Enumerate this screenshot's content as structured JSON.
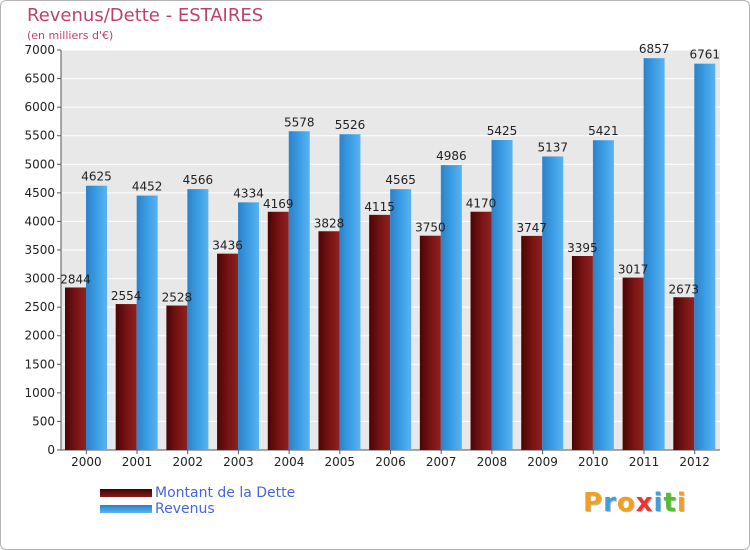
{
  "chart_data": {
    "type": "bar",
    "title": "Revenus/Dette - ESTAIRES",
    "subtitle": "(en milliers d'€)",
    "categories": [
      "2000",
      "2001",
      "2002",
      "2003",
      "2004",
      "2005",
      "2006",
      "2007",
      "2008",
      "2009",
      "2010",
      "2011",
      "2012"
    ],
    "series": [
      {
        "name": "Montant de la Dette",
        "color": "#7a1414",
        "values": [
          2844,
          2554,
          2528,
          3436,
          4169,
          3828,
          4115,
          3750,
          4170,
          3747,
          3395,
          3017,
          2673
        ]
      },
      {
        "name": "Revenus",
        "color": "#3d9fe6",
        "values": [
          4625,
          4452,
          4566,
          4334,
          5578,
          5526,
          4565,
          4986,
          5425,
          5137,
          5421,
          6857,
          6761
        ]
      }
    ],
    "ylim": [
      0,
      7000
    ],
    "ytick_step": 500,
    "grid": true,
    "legend_position": "bottom-left"
  },
  "brand": {
    "letters": [
      "P",
      "r",
      "o",
      "x",
      "i",
      "t",
      "i"
    ],
    "colors": [
      "#f0a020",
      "#3aa0e0",
      "#f0a020",
      "#ee3333",
      "#3aa0e0",
      "#55bb33",
      "#f0a020"
    ]
  }
}
